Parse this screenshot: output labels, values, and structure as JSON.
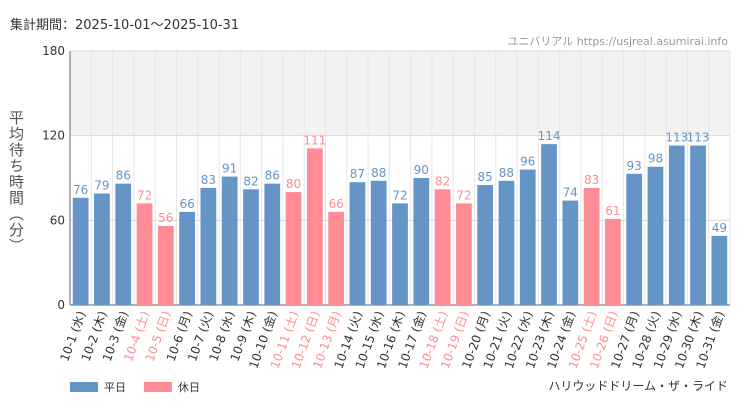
{
  "header": {
    "period_label": "集計期間：2025-10-01～2025-10-31",
    "site": "ユニバリアル  https://usjreal.asumirai.info"
  },
  "footer": {
    "ride_name": "ハリウッドドリーム・ザ・ライド"
  },
  "colors": {
    "weekday": "#6495c6",
    "holiday": "#ff8c94",
    "band": "#f2f2f2"
  },
  "legend": [
    {
      "label": "平日",
      "color": "#6495c6"
    },
    {
      "label": "休日",
      "color": "#ff8c94"
    }
  ],
  "chart_data": {
    "type": "bar",
    "title": "集計期間：2025-10-01～2025-10-31",
    "ylabel": "平均待ち時間（分）",
    "xlabel": "",
    "ylim": [
      0,
      180
    ],
    "yticks": [
      0,
      60,
      120,
      180
    ],
    "highlight_band": [
      120,
      180
    ],
    "categories": [
      "10-1 (水)",
      "10-2 (木)",
      "10-3 (金)",
      "10-4 (土)",
      "10-5 (日)",
      "10-6 (月)",
      "10-7 (火)",
      "10-8 (水)",
      "10-9 (木)",
      "10-10 (金)",
      "10-11 (土)",
      "10-12 (日)",
      "10-13 (月)",
      "10-14 (火)",
      "10-15 (水)",
      "10-16 (木)",
      "10-17 (金)",
      "10-18 (土)",
      "10-19 (日)",
      "10-20 (月)",
      "10-21 (火)",
      "10-22 (水)",
      "10-23 (木)",
      "10-24 (金)",
      "10-25 (土)",
      "10-26 (日)",
      "10-27 (月)",
      "10-28 (火)",
      "10-29 (水)",
      "10-30 (木)",
      "10-31 (金)"
    ],
    "values": [
      76,
      79,
      86,
      72,
      56,
      66,
      83,
      91,
      82,
      86,
      80,
      111,
      66,
      87,
      88,
      72,
      90,
      82,
      72,
      85,
      88,
      96,
      114,
      74,
      83,
      61,
      93,
      98,
      113,
      113,
      49
    ],
    "holiday": [
      false,
      false,
      false,
      true,
      true,
      false,
      false,
      false,
      false,
      false,
      true,
      true,
      true,
      false,
      false,
      false,
      false,
      true,
      true,
      false,
      false,
      false,
      false,
      false,
      true,
      true,
      false,
      false,
      false,
      false,
      false
    ],
    "series": [
      {
        "name": "平日"
      },
      {
        "name": "休日"
      }
    ]
  }
}
